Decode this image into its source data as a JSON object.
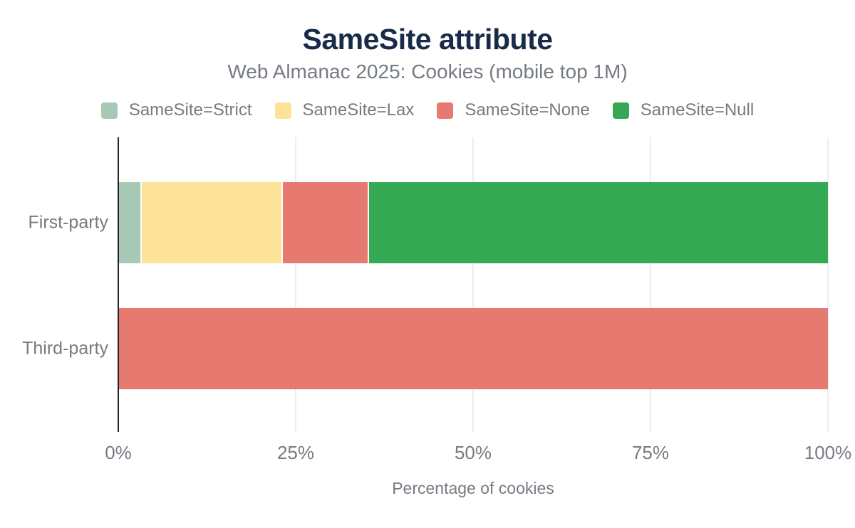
{
  "header": {
    "title": "SameSite attribute",
    "subtitle": "Web Almanac 2025: Cookies (mobile top 1M)"
  },
  "chart_data": {
    "type": "bar",
    "orientation": "horizontal",
    "stacked": true,
    "title": "SameSite attribute",
    "subtitle": "Web Almanac 2025: Cookies (mobile top 1M)",
    "categories": [
      "First-party",
      "Third-party"
    ],
    "series": [
      {
        "name": "SameSite=Strict",
        "color": "#a6c8b5",
        "values": [
          3.3,
          0
        ]
      },
      {
        "name": "SameSite=Lax",
        "color": "#fde398",
        "values": [
          19.9,
          0
        ]
      },
      {
        "name": "SameSite=None",
        "color": "#e77a70",
        "values": [
          12.1,
          100
        ]
      },
      {
        "name": "SameSite=Null",
        "color": "#34a853",
        "values": [
          64.7,
          0
        ]
      }
    ],
    "xlabel": "Percentage of cookies",
    "ylabel": "",
    "xlim": [
      0,
      100
    ],
    "x_tick_labels": [
      "0%",
      "25%",
      "50%",
      "75%",
      "100%"
    ],
    "x_tick_values": [
      0,
      25,
      50,
      75,
      100
    ],
    "grid": "vertical",
    "legend_position": "top"
  },
  "colors": {
    "title": "#1a2b49",
    "text_muted": "#757b82",
    "grid": "#ededed",
    "axis": "#202429",
    "background": "#ffffff"
  }
}
